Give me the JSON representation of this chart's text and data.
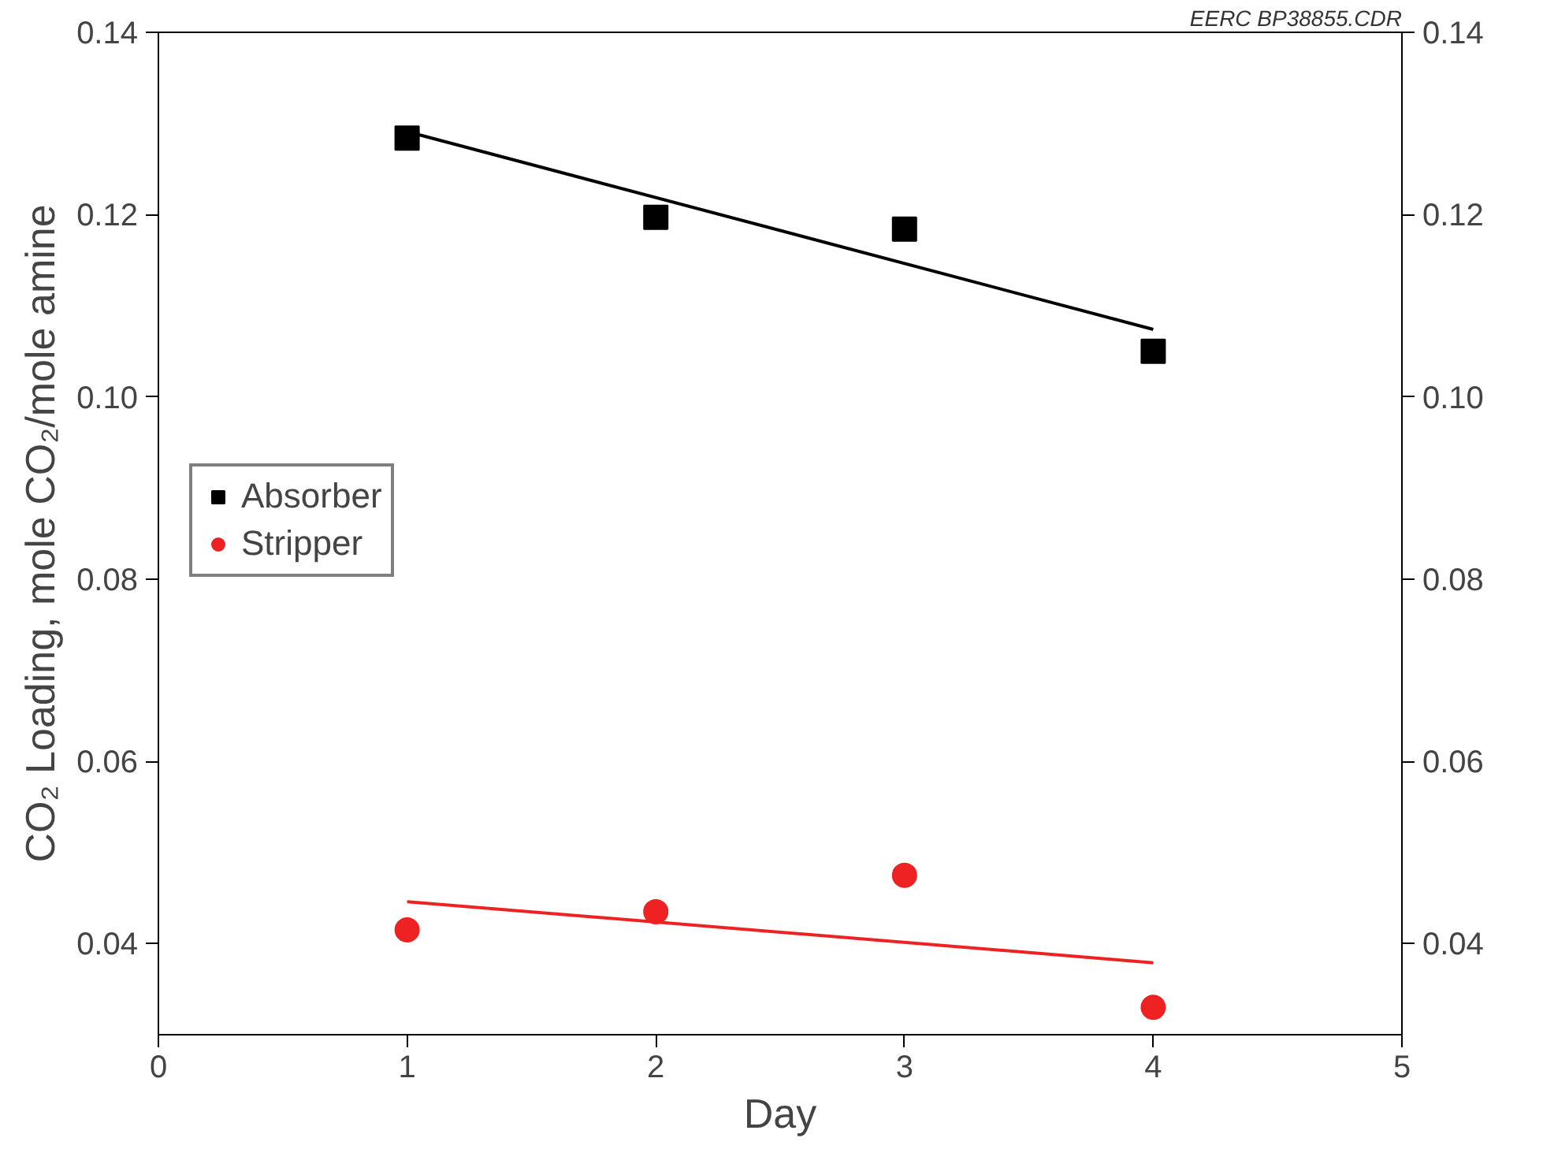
{
  "chart_data": {
    "type": "scatter",
    "xlabel": "Day",
    "ylabel": "CO₂ Loading, mole CO₂/mole amine",
    "annotations": [
      "EERC BP38855.CDR"
    ],
    "xlim": [
      0,
      5
    ],
    "xticks": [
      0,
      1,
      2,
      3,
      4,
      5
    ],
    "ylim": [
      0.03,
      0.14
    ],
    "yticks": [
      {
        "value": 0.04,
        "label": "0.04"
      },
      {
        "value": 0.06,
        "label": "0.06"
      },
      {
        "value": 0.08,
        "label": "0.08"
      },
      {
        "value": 0.1,
        "label": "0.10"
      },
      {
        "value": 0.12,
        "label": "0.12"
      },
      {
        "value": 0.14,
        "label": "0.14"
      }
    ],
    "y2lim": [
      0.03,
      0.14
    ],
    "y2ticks": [
      {
        "value": 0.04,
        "label": "0.04"
      },
      {
        "value": 0.06,
        "label": "0.06"
      },
      {
        "value": 0.08,
        "label": "0.08"
      },
      {
        "value": 0.1,
        "label": "0.10"
      },
      {
        "value": 0.12,
        "label": "0.12"
      },
      {
        "value": 0.14,
        "label": "0.14"
      }
    ],
    "grid": false,
    "legend": "left",
    "series": [
      {
        "name": "Absorber",
        "marker": "square",
        "color": "#000000",
        "x": [
          1,
          2,
          3,
          4
        ],
        "values": [
          0.1284,
          0.1197,
          0.1184,
          0.105
        ]
      },
      {
        "name": "Stripper",
        "marker": "circle",
        "color": "#ee2222",
        "x": [
          1,
          2,
          3,
          4
        ],
        "values": [
          0.0415,
          0.0435,
          0.0475,
          0.033
        ]
      },
      {
        "type": "line",
        "color": "#000000",
        "x": [
          1,
          4
        ],
        "values": [
          0.1291,
          0.1074
        ]
      },
      {
        "type": "line",
        "color": "#ee2222",
        "x": [
          1,
          4
        ],
        "values": [
          0.0446,
          0.0379
        ]
      }
    ]
  }
}
